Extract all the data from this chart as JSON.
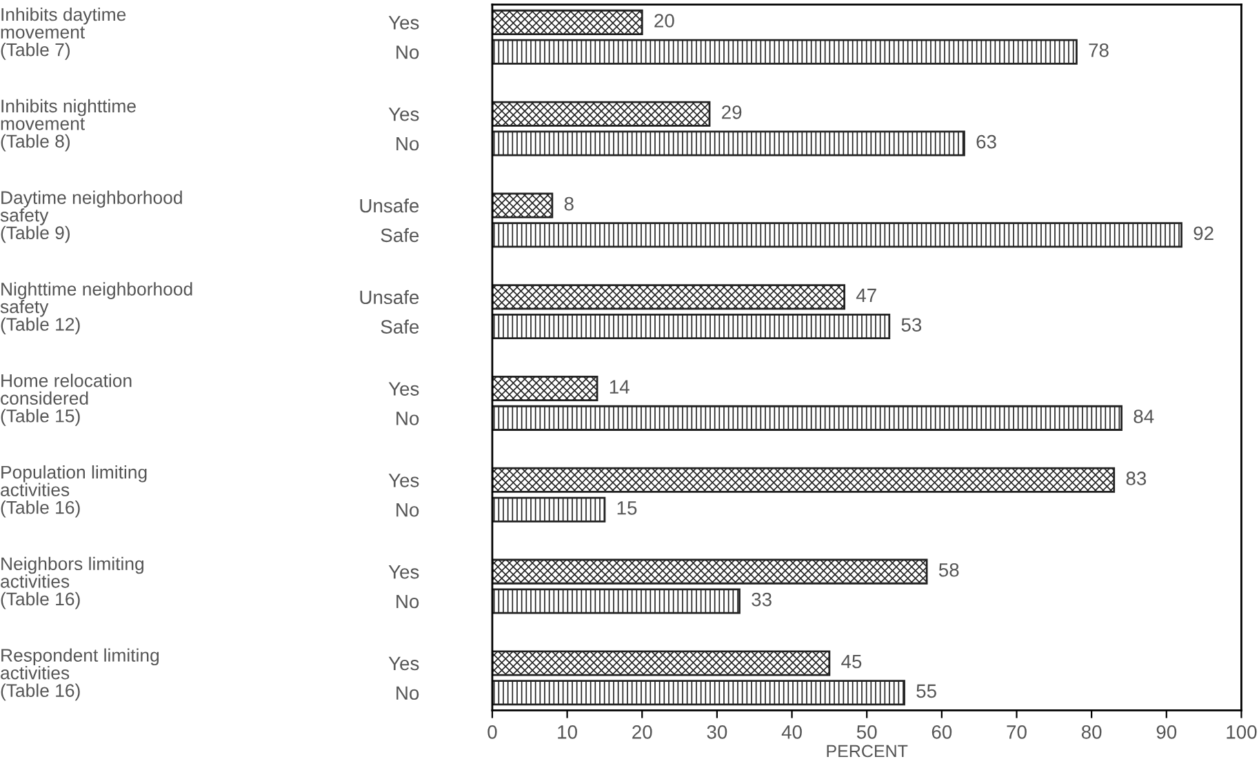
{
  "chart_data": {
    "type": "bar",
    "orientation": "horizontal",
    "xlabel": "PERCENT",
    "categories": [
      "Yes",
      "No",
      "Yes",
      "No",
      "Unsafe",
      "Safe",
      "Unsafe",
      "Safe",
      "Yes",
      "No",
      "Yes",
      "No",
      "Yes",
      "No",
      "Yes",
      "No"
    ],
    "values": [
      20,
      78,
      29,
      63,
      8,
      92,
      47,
      53,
      14,
      84,
      83,
      15,
      58,
      33,
      45,
      55
    ],
    "colors": [
      "#222222",
      "#222222",
      "#222222",
      "#222222",
      "#222222",
      "#222222",
      "#222222",
      "#222222",
      "#222222",
      "#222222",
      "#222222",
      "#222222",
      "#222222",
      "#222222",
      "#222222",
      "#222222"
    ],
    "annotations": [
      "Inhibits daytime\nmovement\n(Table 7)",
      "Inhibits nighttime\nmovement\n(Table 8)",
      "Daytime neighborhood\nsafety\n(Table 9)",
      "Nighttime neighborhood\nsafety\n(Table 12)",
      "Home relocation\nconsidered\n(Table 15)",
      "Population limiting\nactivities\n(Table 16)",
      "Neighbors limiting\nactivities\n(Table 16)",
      "Respondent limiting\nactivities\n(Table 16)"
    ],
    "xlim": [
      0,
      100
    ],
    "xticks": [
      0,
      10,
      20,
      30,
      40,
      50,
      60,
      70,
      80,
      90,
      100
    ],
    "data_labels": true,
    "grid": false
  }
}
